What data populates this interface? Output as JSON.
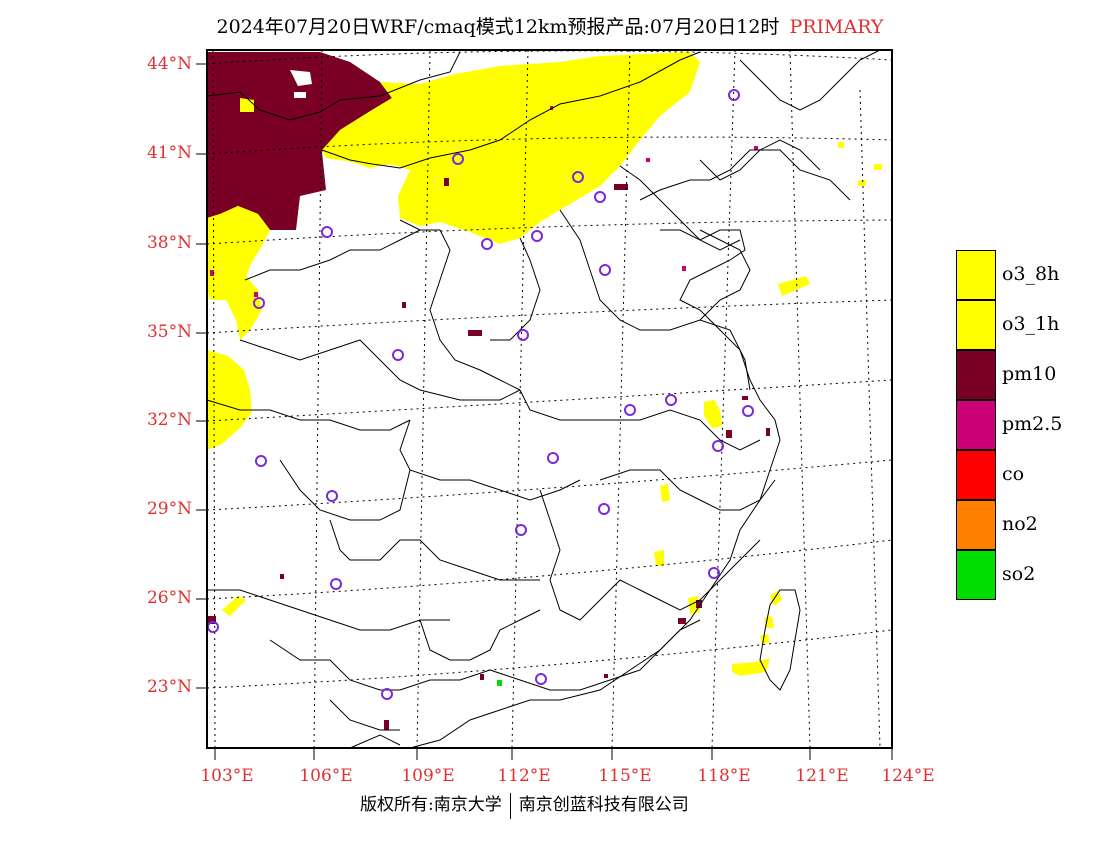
{
  "title": {
    "main": "2024年07月20日WRF/cmaq模式12km预报产品:07月20日12时",
    "tag": "PRIMARY"
  },
  "axes": {
    "lat_labels": [
      "44°N",
      "41°N",
      "38°N",
      "35°N",
      "32°N",
      "29°N",
      "26°N",
      "23°N"
    ],
    "lon_labels": [
      "103°E",
      "106°E",
      "109°E",
      "112°E",
      "115°E",
      "118°E",
      "121°E",
      "124°E"
    ]
  },
  "legend": [
    {
      "label": "o3_8h",
      "color": "#ffff00"
    },
    {
      "label": "o3_1h",
      "color": "#ffff00"
    },
    {
      "label": "pm10",
      "color": "#7a0026"
    },
    {
      "label": "pm2.5",
      "color": "#cc0077"
    },
    {
      "label": "co",
      "color": "#ff0000"
    },
    {
      "label": "no2",
      "color": "#ff8000"
    },
    {
      "label": "so2",
      "color": "#00dd00"
    }
  ],
  "colors": {
    "o3": "#ffff00",
    "pm10": "#7a0026",
    "pm25": "#cc0077",
    "so2": "#00dd00",
    "station": "#7a2ad8",
    "label_red": "#e03030"
  },
  "footer": {
    "left": "版权所有:南京大学",
    "right": "南京创蓝科技有限公司"
  }
}
